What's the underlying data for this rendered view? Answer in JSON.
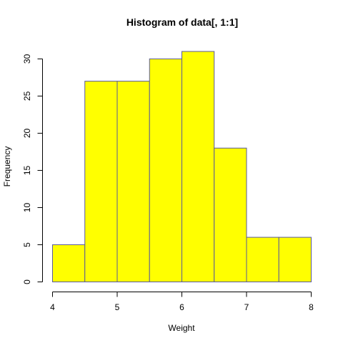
{
  "chart_data": {
    "type": "bar",
    "title": "Histogram of data[, 1:1]",
    "xlabel": "Weight",
    "ylabel": "Frequency",
    "bins": [
      {
        "start": 4.0,
        "end": 4.5,
        "count": 5
      },
      {
        "start": 4.5,
        "end": 5.0,
        "count": 27
      },
      {
        "start": 5.0,
        "end": 5.5,
        "count": 27
      },
      {
        "start": 5.5,
        "end": 6.0,
        "count": 30
      },
      {
        "start": 6.0,
        "end": 6.5,
        "count": 31
      },
      {
        "start": 6.5,
        "end": 7.0,
        "count": 18
      },
      {
        "start": 7.0,
        "end": 7.5,
        "count": 6
      },
      {
        "start": 7.5,
        "end": 8.0,
        "count": 6
      }
    ],
    "x_ticks": [
      "4",
      "5",
      "6",
      "7",
      "8"
    ],
    "y_ticks": [
      "0",
      "5",
      "10",
      "15",
      "20",
      "25",
      "30"
    ],
    "xlim": [
      4,
      8
    ],
    "ylim": [
      0,
      31
    ],
    "grid": false,
    "bar_color": "#ffff00",
    "bar_border_color": "#5a5a9a"
  }
}
